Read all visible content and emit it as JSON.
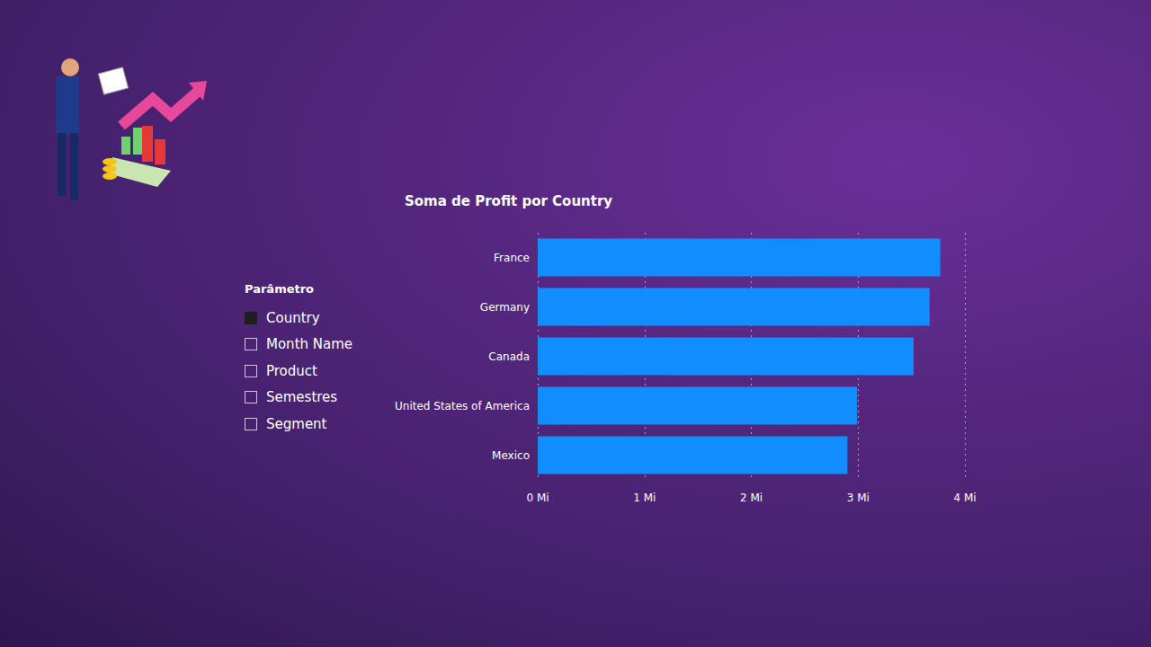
{
  "chart_data": {
    "type": "bar",
    "title": "Soma de Profit por Country",
    "orientation": "horizontal",
    "categories": [
      "France",
      "Germany",
      "Canada",
      "United States of America",
      "Mexico"
    ],
    "values": [
      3.77,
      3.67,
      3.52,
      2.99,
      2.9
    ],
    "color": "#118DFF",
    "xlim": [
      0,
      4
    ],
    "xticks": [
      {
        "value": 0,
        "label": "0 Mi"
      },
      {
        "value": 1,
        "label": "1 Mi"
      },
      {
        "value": 2,
        "label": "2 Mi"
      },
      {
        "value": 3,
        "label": "3 Mi"
      },
      {
        "value": 4,
        "label": "4 Mi"
      }
    ],
    "grid": true
  },
  "slicer": {
    "title": "Parâmetro",
    "items": [
      {
        "label": "Country",
        "selected": true
      },
      {
        "label": "Month Name",
        "selected": false
      },
      {
        "label": "Product",
        "selected": false
      },
      {
        "label": "Semestres",
        "selected": false
      },
      {
        "label": "Segment",
        "selected": false
      }
    ]
  }
}
